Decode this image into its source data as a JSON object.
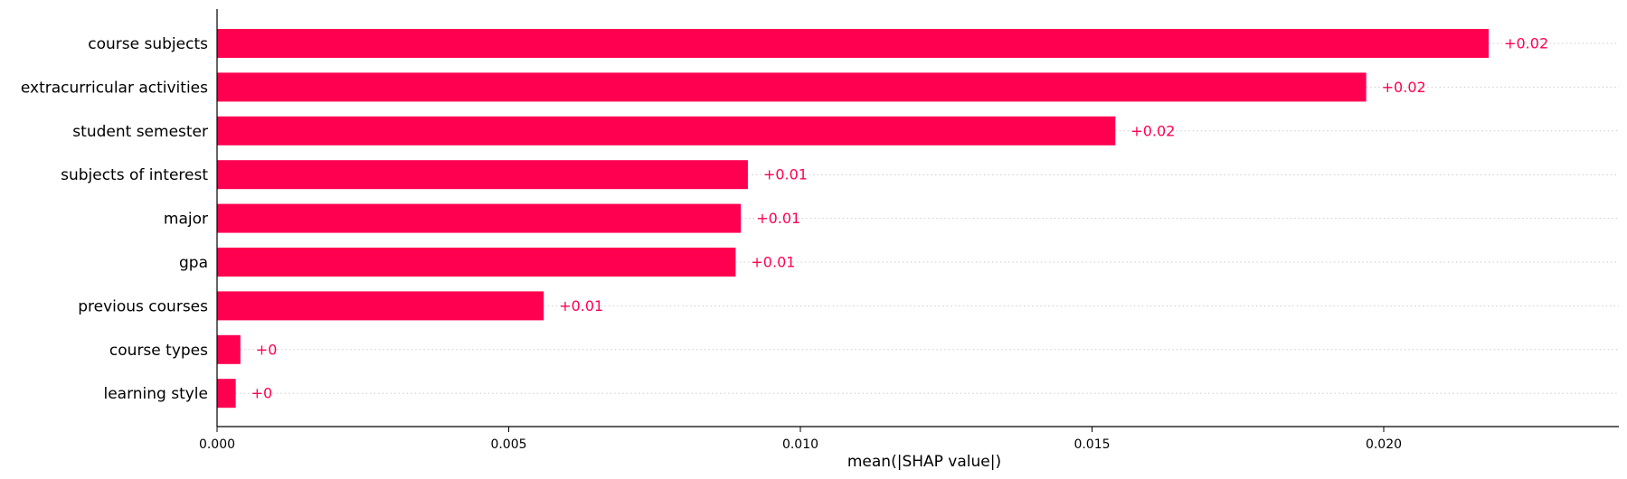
{
  "chart_data": {
    "type": "bar",
    "orientation": "horizontal",
    "categories": [
      "course subjects",
      "extracurricular activities",
      "student semester",
      "subjects of interest",
      "major",
      "gpa",
      "previous courses",
      "course types",
      "learning style"
    ],
    "values": [
      0.0218,
      0.0197,
      0.0154,
      0.0091,
      0.00898,
      0.00889,
      0.0056,
      0.0004,
      0.00032
    ],
    "value_labels": [
      "+0.02",
      "+0.02",
      "+0.02",
      "+0.01",
      "+0.01",
      "+0.01",
      "+0.01",
      "+0",
      "+0"
    ],
    "xlabel": "mean(|SHAP value|)",
    "ylabel": "",
    "xlim": [
      0,
      0.024
    ],
    "xticks": [
      0,
      0.005,
      0.01,
      0.015,
      0.02
    ],
    "xtick_labels": [
      "0.000",
      "0.005",
      "0.010",
      "0.015",
      "0.020"
    ],
    "bar_color": "#ff0051",
    "label_color": "#ff0051",
    "row_grid": "dotted",
    "legend": "none"
  }
}
